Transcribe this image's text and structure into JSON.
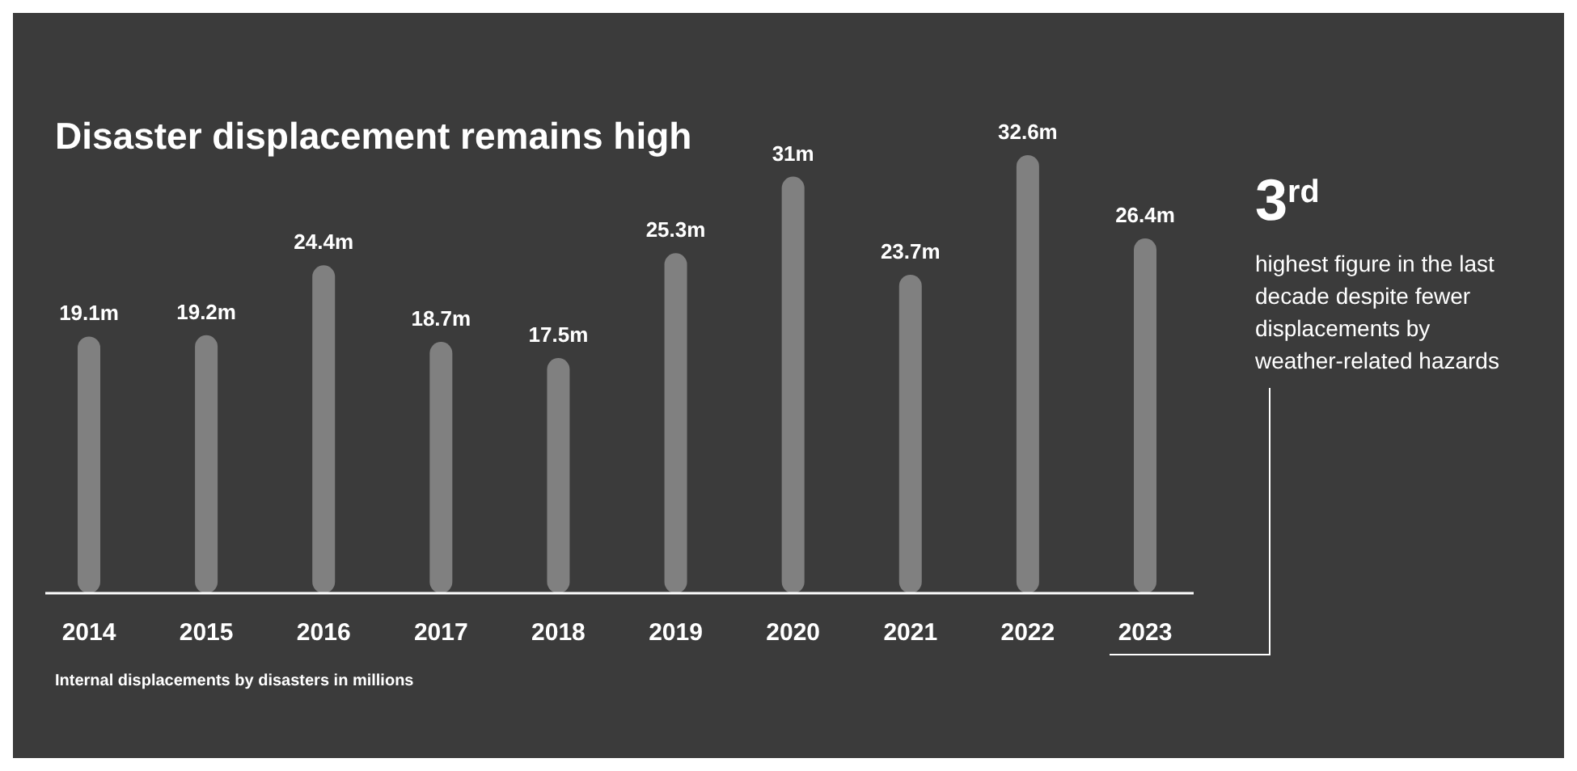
{
  "chart_data": {
    "type": "bar",
    "title": "Disaster displacement remains high",
    "categories": [
      "2014",
      "2015",
      "2016",
      "2017",
      "2018",
      "2019",
      "2020",
      "2021",
      "2022",
      "2023"
    ],
    "values": [
      19.1,
      19.2,
      24.4,
      18.7,
      17.5,
      25.3,
      31,
      23.7,
      32.6,
      26.4
    ],
    "value_labels": [
      "19.1m",
      "19.2m",
      "24.4m",
      "18.7m",
      "17.5m",
      "25.3m",
      "31m",
      "23.7m",
      "32.6m",
      "26.4m"
    ],
    "color": "#808080",
    "annotations": [
      "3$^{rd}$",
      "highest figure in the last decade despite fewer displacements by weather-related hazards",
      "Internal displacements by disasters in millions"
    ]
  }
}
